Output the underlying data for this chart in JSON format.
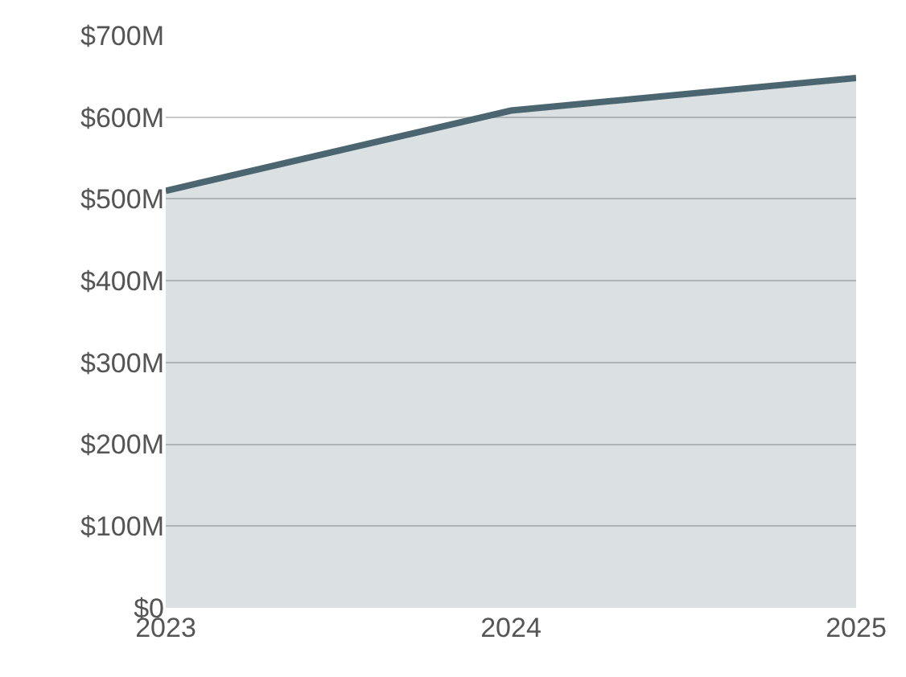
{
  "chart_data": {
    "type": "area",
    "categories": [
      "2023",
      "2024",
      "2025"
    ],
    "series": [
      {
        "color": "#4b6670",
        "values": [
          510,
          608,
          648
        ]
      }
    ],
    "ylim": [
      0,
      700
    ],
    "yticks": [
      {
        "value": 0,
        "label": "$0"
      },
      {
        "value": 100,
        "label": "$100M"
      },
      {
        "value": 200,
        "label": "$200M"
      },
      {
        "value": 300,
        "label": "$300M"
      },
      {
        "value": 400,
        "label": "$400M"
      },
      {
        "value": 500,
        "label": "$500M"
      },
      {
        "value": 600,
        "label": "$600M"
      },
      {
        "value": 700,
        "label": "$700M"
      }
    ],
    "grid": "y",
    "legend": false
  }
}
